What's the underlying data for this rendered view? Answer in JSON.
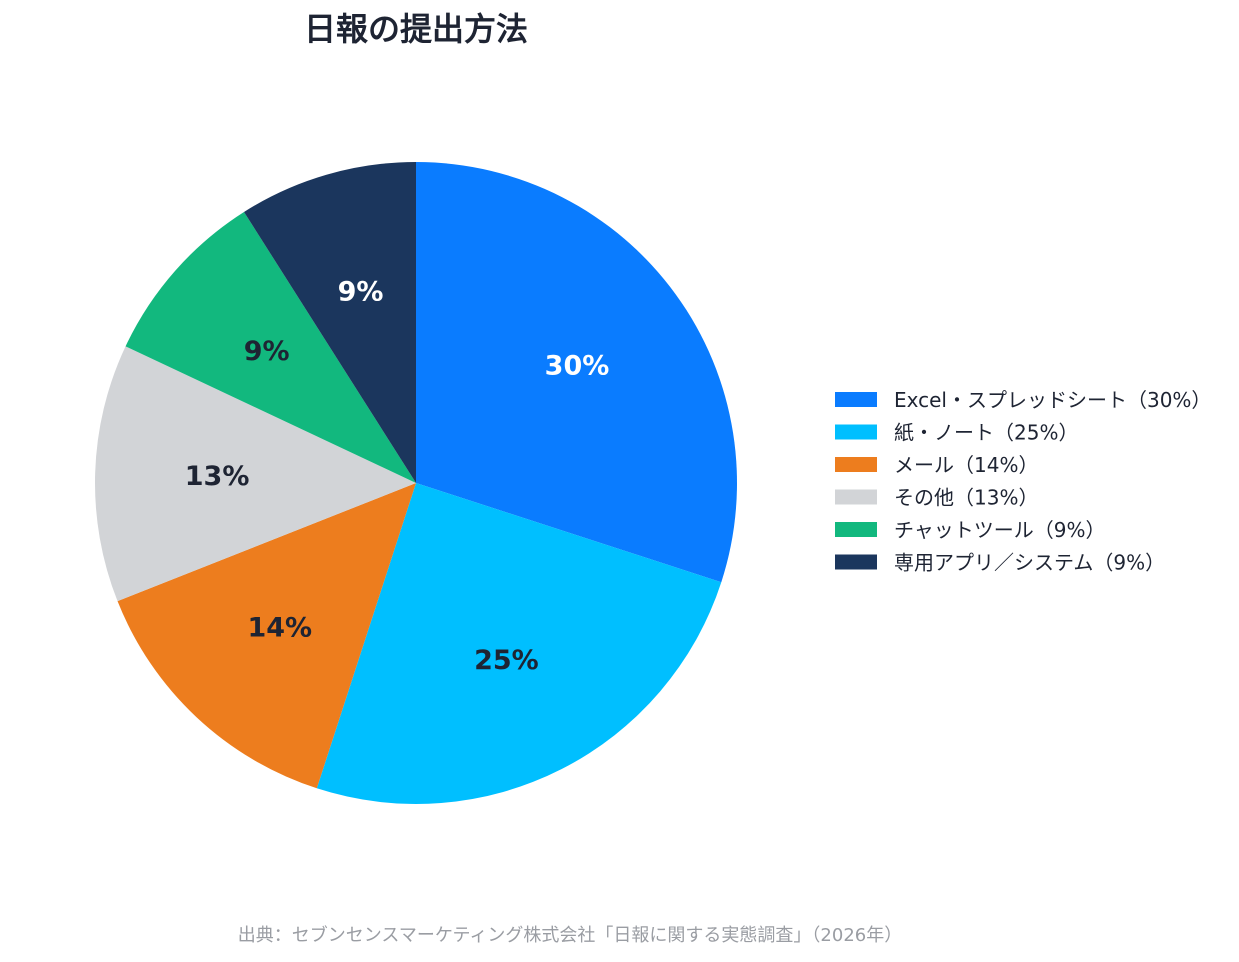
{
  "chart_data": {
    "type": "pie",
    "title": "日報の提出方法",
    "categories": [
      "Excel・スプレッドシート",
      "紙・ノート",
      "メール",
      "その他",
      "チャットツール",
      "専用アプリ／システム"
    ],
    "values": [
      30,
      25,
      14,
      13,
      9,
      9
    ],
    "slice_labels": [
      "30%",
      "25%",
      "14%",
      "13%",
      "9%",
      "9%"
    ],
    "legend_labels": [
      "Excel・スプレッドシート（30%）",
      "紙・ノート（25%）",
      "メール（14%）",
      "その他（13%）",
      "チャットツール（9%）",
      "専用アプリ／システム（9%）"
    ],
    "colors": [
      "#0a7cff",
      "#00bfff",
      "#ed7d1e",
      "#d2d4d7",
      "#12b87e",
      "#1b365d"
    ],
    "label_colors": [
      "#ffffff",
      "#1e2433",
      "#1e2433",
      "#1e2433",
      "#1e2433",
      "#ffffff"
    ],
    "legend_placement": "right",
    "unit": "%"
  },
  "source": "出典：セブンセンスマーケティング株式会社「日報に関する実態調査」（2026年）"
}
